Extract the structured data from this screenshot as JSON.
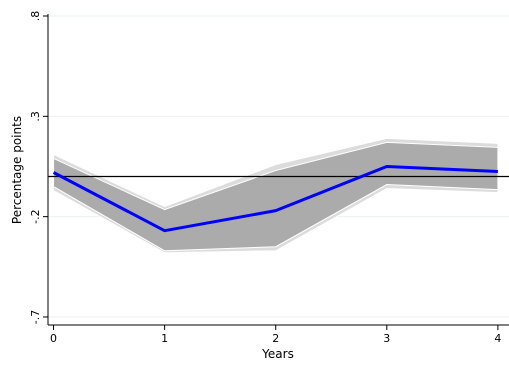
{
  "chart_data": {
    "type": "line",
    "title": "",
    "xlabel": "Years",
    "ylabel": "Percentage points",
    "x": [
      0,
      1,
      2,
      3,
      4
    ],
    "xticks": [
      "0",
      "1",
      "2",
      "3",
      "4"
    ],
    "yticks": [
      {
        "value": -0.7,
        "label": "-.7"
      },
      {
        "value": -0.2,
        "label": "-.2"
      },
      {
        "value": 0.3,
        "label": ".3"
      },
      {
        "value": 0.8,
        "label": ".8"
      }
    ],
    "xlim": [
      -0.05,
      4.1
    ],
    "ylim": [
      -0.74,
      0.81
    ],
    "grid": "horizontal",
    "legend": "none",
    "reference_line": 0,
    "series": [
      {
        "values": [
          0.02,
          -0.27,
          -0.17,
          0.05,
          0.025
        ],
        "color": "#0000ff"
      }
    ],
    "bands": [
      {
        "lower": [
          -0.07,
          -0.38,
          -0.37,
          -0.06,
          -0.08
        ],
        "upper": [
          0.11,
          -0.15,
          0.06,
          0.19,
          0.165
        ],
        "color": "#dcdcdc"
      },
      {
        "lower": [
          -0.05,
          -0.37,
          -0.35,
          -0.04,
          -0.065
        ],
        "upper": [
          0.09,
          -0.165,
          0.03,
          0.17,
          0.145
        ],
        "color": "#ababab"
      }
    ],
    "colors": {
      "line": "#0000ff",
      "reference": "#000000",
      "grid": "#eaf2f3",
      "outer_band": "#dcdcdc",
      "inner_band": "#ababab"
    }
  }
}
